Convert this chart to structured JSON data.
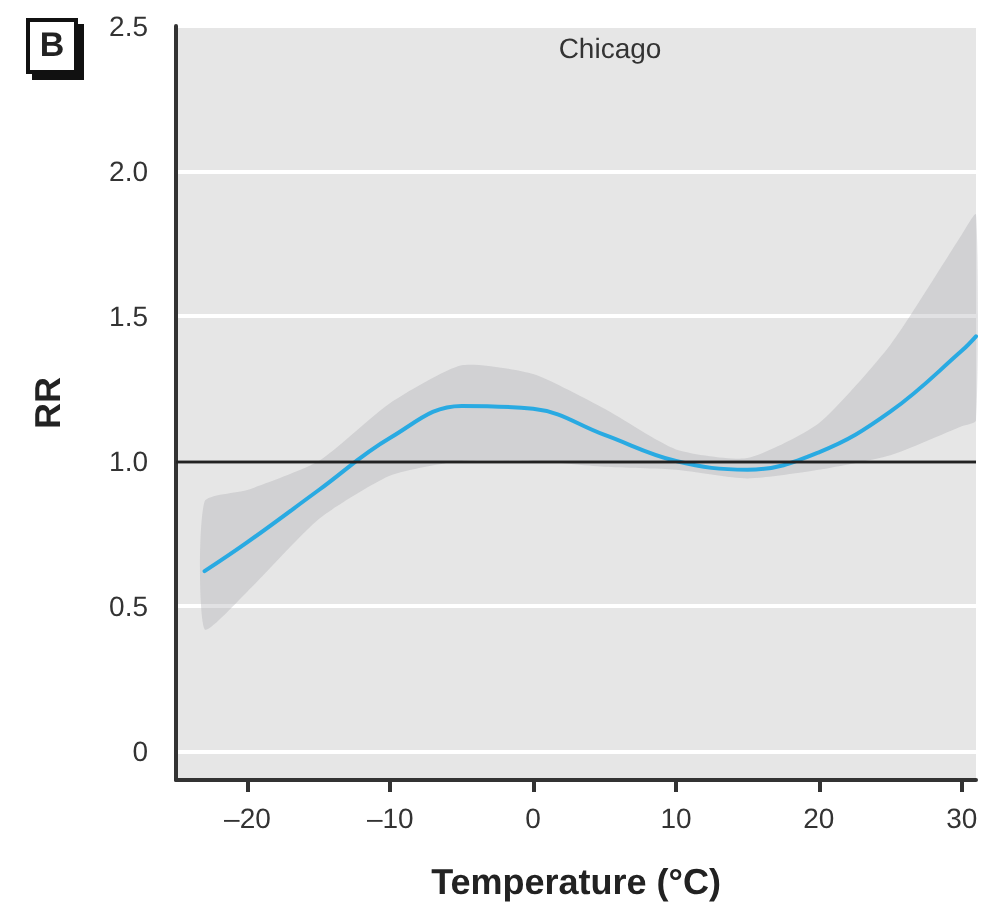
{
  "chart_data": {
    "type": "line",
    "title": "Chicago",
    "xlabel": "Temperature (°C)",
    "ylabel": "RR",
    "annotations": [
      "B"
    ],
    "x": [
      -23,
      -20,
      -15,
      -10,
      -5,
      0,
      5,
      10,
      15,
      20,
      25,
      30,
      31
    ],
    "series": [
      {
        "color": "#29aae2",
        "values": [
          0.62,
          0.72,
          0.9,
          1.08,
          1.19,
          1.18,
          1.09,
          1.0,
          0.97,
          1.03,
          1.17,
          1.38,
          1.43
        ],
        "lower": [
          0.42,
          0.55,
          0.8,
          0.95,
          1.0,
          1.0,
          0.98,
          0.97,
          0.94,
          0.97,
          1.02,
          1.12,
          1.14
        ],
        "upper": [
          0.86,
          0.9,
          1.0,
          1.2,
          1.33,
          1.3,
          1.18,
          1.04,
          1.01,
          1.13,
          1.4,
          1.78,
          1.85
        ]
      }
    ],
    "ref_lines": [
      {
        "axis": "y",
        "value": 1,
        "color": "#222222"
      }
    ],
    "xlim": [
      -25,
      31
    ],
    "xticks": [
      {
        "value": -20,
        "label": "–20"
      },
      {
        "value": -10,
        "label": "–10"
      },
      0,
      10,
      20,
      30
    ],
    "ylim": [
      -0.1,
      2.5
    ],
    "yticks": [
      {
        "value": 0,
        "label": "0"
      },
      {
        "value": 0.5,
        "label": "0.5"
      },
      {
        "value": 1,
        "label": "1.0"
      },
      {
        "value": 1.5,
        "label": "1.5"
      },
      {
        "value": 2,
        "label": "2.0"
      },
      {
        "value": 2.5,
        "label": "2.5"
      }
    ],
    "grid": "y",
    "marker": "none",
    "line_style": "solid"
  }
}
